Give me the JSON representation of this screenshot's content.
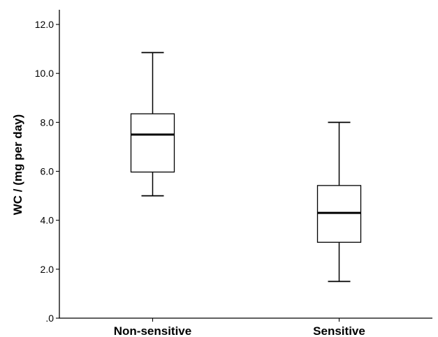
{
  "chart_data": {
    "type": "boxplot",
    "title": "",
    "xlabel": "",
    "ylabel": "WC / (mg per day)",
    "ylim": [
      0,
      12.6
    ],
    "yticks": [
      0,
      2,
      4,
      6,
      8,
      10,
      12
    ],
    "ytick_labels": [
      ".0",
      "2.0",
      "4.0",
      "6.0",
      "8.0",
      "10.0",
      "12.0"
    ],
    "categories": [
      "Non-sensitive",
      "Sensitive"
    ],
    "boxes": [
      {
        "min": 5.0,
        "q1": 5.97,
        "median": 7.5,
        "q3": 8.35,
        "max": 10.85
      },
      {
        "min": 1.5,
        "q1": 3.1,
        "median": 4.3,
        "q3": 5.42,
        "max": 8.0
      }
    ],
    "grid": false
  }
}
